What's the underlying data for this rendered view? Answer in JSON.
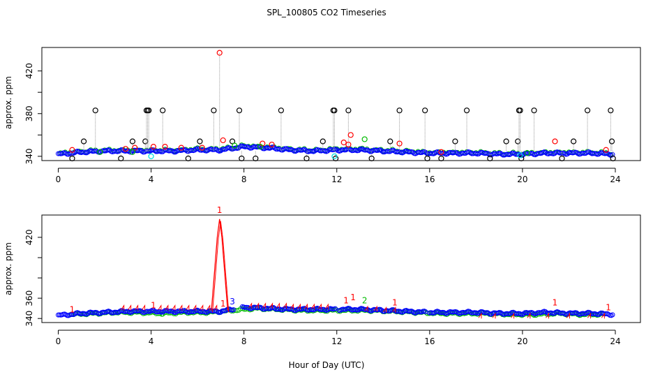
{
  "chart_data": {
    "type": "scatter",
    "title": "SPL_100805  CO2 Timeseries",
    "xlabel": "Hour of Day (UTC)",
    "xlim": [
      0,
      24
    ],
    "x_ticks": [
      "0",
      "4",
      "8",
      "12",
      "16",
      "20",
      "24"
    ],
    "panels": [
      {
        "ylabel": "approx. ppm",
        "ylim": [
          336,
          442
        ],
        "y_ticks": [
          "340",
          "380",
          "420"
        ],
        "y_tick_values": [
          340,
          380,
          420
        ],
        "marker": "circle",
        "baseline": {
          "name": "blue",
          "color": "#0000ff",
          "x": [
            0,
            1,
            2,
            3,
            4,
            5,
            6,
            7,
            8,
            9,
            10,
            11,
            12,
            13,
            14,
            15,
            16,
            17,
            18,
            19,
            20,
            21,
            22,
            23,
            23.9
          ],
          "y": [
            342,
            344,
            345,
            345,
            345,
            345,
            346,
            346,
            349,
            348,
            346,
            345,
            346,
            346,
            345,
            344,
            343,
            343,
            343,
            342,
            342,
            343,
            343,
            343,
            342
          ]
        },
        "overlay_series": [
          {
            "name": "red",
            "color": "#ff0000",
            "x": [
              0.6,
              2.9,
              3.3,
              4.1,
              4.6,
              5.3,
              6.2,
              6.95,
              7.1,
              8.8,
              9.2,
              12.3,
              12.5,
              12.6,
              14.7,
              16.5,
              21.4,
              23.6
            ],
            "y": [
              346,
              347,
              348,
              349,
              349,
              348,
              348,
              437,
              355,
              352,
              351,
              353,
              351,
              360,
              352,
              344,
              354,
              346
            ]
          },
          {
            "name": "green",
            "color": "#00bb00",
            "x": [
              1.8,
              3.2,
              7.6,
              8.7,
              13.2,
              20.2
            ],
            "y": [
              344,
              344,
              350,
              349,
              356,
              343
            ]
          },
          {
            "name": "cyan",
            "color": "#00dddd",
            "x": [
              4.0,
              11.9,
              19.9
            ],
            "y": [
              340,
              340,
              341
            ]
          }
        ],
        "spikes": {
          "name": "black",
          "color": "#000000",
          "x": [
            0.6,
            1.1,
            1.6,
            2.7,
            3.2,
            3.75,
            3.8,
            3.85,
            3.9,
            4.5,
            5.6,
            6.1,
            6.7,
            7.5,
            7.8,
            7.9,
            8.5,
            9.6,
            10.7,
            11.4,
            11.85,
            11.9,
            11.95,
            12.5,
            13.5,
            14.3,
            14.7,
            15.8,
            15.9,
            16.5,
            17.1,
            17.6,
            18.6,
            19.3,
            19.8,
            19.85,
            19.9,
            19.95,
            20.5,
            21.7,
            22.2,
            22.8,
            23.8,
            23.85,
            23.9
          ],
          "y": [
            338,
            354,
            383,
            338,
            354,
            354,
            383,
            383,
            383,
            383,
            338,
            354,
            383,
            354,
            383,
            338,
            338,
            383,
            338,
            354,
            383,
            383,
            338,
            383,
            338,
            354,
            383,
            383,
            338,
            338,
            354,
            383,
            338,
            354,
            354,
            383,
            383,
            338,
            383,
            338,
            354,
            383,
            383,
            354,
            338
          ]
        }
      },
      {
        "ylabel": "approx. ppm",
        "ylim": [
          336,
          442
        ],
        "y_ticks": [
          "340",
          "360",
          "420"
        ],
        "y_tick_values": [
          340,
          360,
          420
        ],
        "marker": "circle",
        "baseline": {
          "name": "blue",
          "color": "#0000ff",
          "x": [
            0,
            1,
            2,
            3,
            4,
            5,
            6,
            7,
            8,
            9,
            10,
            11,
            12,
            13,
            14,
            15,
            16,
            17,
            18,
            19,
            20,
            21,
            22,
            23,
            23.9
          ],
          "y": [
            343,
            345,
            346,
            347,
            347,
            347,
            347,
            347,
            351,
            350,
            349,
            349,
            349,
            349,
            348,
            347,
            346,
            346,
            346,
            345,
            345,
            346,
            345,
            345,
            344
          ]
        },
        "green_series": {
          "name": "green",
          "color": "#00bb00",
          "x": [
            0.5,
            1.5,
            2.5,
            3.5,
            4.5,
            5.5,
            6.5,
            8.5,
            9.5,
            10.5,
            11.5,
            12.5,
            13.5,
            14.5,
            15.5,
            16.5,
            17.5,
            18.5,
            19.5,
            20.5,
            21.5,
            22.5,
            23.5
          ],
          "y": [
            344,
            345,
            346,
            346,
            345,
            346,
            346,
            350,
            349,
            348,
            348,
            348,
            348,
            347,
            346,
            345,
            345,
            345,
            344,
            344,
            345,
            344,
            344
          ]
        },
        "red_tick_series": {
          "name": "red",
          "color": "#ff0000",
          "x": [
            2.8,
            3.1,
            3.4,
            3.7,
            4.4,
            4.7,
            5.0,
            5.3,
            5.6,
            5.9,
            6.2,
            6.5,
            6.8,
            8.3,
            8.6,
            8.9,
            9.2,
            9.5,
            9.8,
            10.1,
            10.4,
            10.7,
            11.0,
            11.3,
            11.6,
            13.3,
            13.7,
            14.1,
            14.5,
            18.2,
            18.8,
            19.6,
            20.3,
            21.1,
            22.0,
            22.9,
            23.5
          ],
          "y": [
            350,
            350,
            350,
            350,
            350,
            350,
            350,
            350,
            350,
            350,
            350,
            350,
            350,
            352,
            352,
            352,
            352,
            352,
            352,
            351,
            351,
            351,
            351,
            351,
            351,
            349,
            349,
            348,
            348,
            342,
            342,
            342,
            342,
            342,
            342,
            342,
            342
          ]
        },
        "red_line": {
          "name": "spike",
          "color": "#ff0000",
          "x": [
            6.6,
            6.85,
            6.95,
            7.05,
            7.3
          ],
          "y": [
            348,
            420,
            438,
            420,
            348
          ]
        },
        "numeric_labels": [
          {
            "text": "1",
            "x": 0.6,
            "y": 346,
            "color": "#ff0000"
          },
          {
            "text": "1",
            "x": 4.1,
            "y": 350,
            "color": "#ff0000"
          },
          {
            "text": "1",
            "x": 6.95,
            "y": 444,
            "color": "#ff0000"
          },
          {
            "text": "1",
            "x": 7.1,
            "y": 352,
            "color": "#ff0000"
          },
          {
            "text": "3",
            "x": 7.5,
            "y": 354,
            "color": "#0000ff"
          },
          {
            "text": "1",
            "x": 12.4,
            "y": 355,
            "color": "#ff0000"
          },
          {
            "text": "1",
            "x": 12.7,
            "y": 358,
            "color": "#ff0000"
          },
          {
            "text": "2",
            "x": 13.2,
            "y": 355,
            "color": "#00bb00"
          },
          {
            "text": "1",
            "x": 14.5,
            "y": 353,
            "color": "#ff0000"
          },
          {
            "text": "1",
            "x": 21.4,
            "y": 353,
            "color": "#ff0000"
          },
          {
            "text": "1",
            "x": 23.7,
            "y": 348,
            "color": "#ff0000"
          }
        ]
      }
    ]
  }
}
